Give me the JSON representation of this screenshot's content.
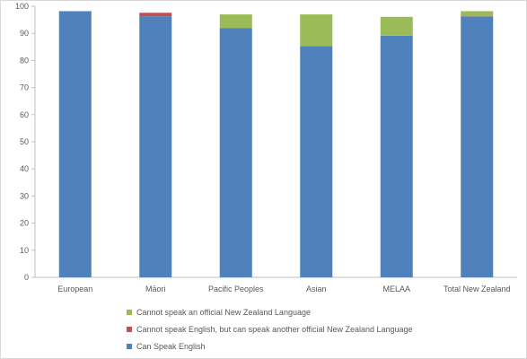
{
  "chart_data": {
    "type": "bar",
    "stacked": true,
    "categories": [
      "European",
      "Māori",
      "Pacific Peoples",
      "Asian",
      "MELAA",
      "Total New Zealand"
    ],
    "series": [
      {
        "name": "Can Speak English",
        "color": "#4f81bd",
        "values": [
          98.2,
          96.3,
          92.0,
          85.3,
          89.1,
          96.2
        ]
      },
      {
        "name": "Cannot speak English, but can speak another official New Zealand Language",
        "color": "#c0504d",
        "values": [
          0.0,
          1.3,
          0.0,
          0.0,
          0.0,
          0.1
        ]
      },
      {
        "name": "Cannot speak an official New Zealand Language",
        "color": "#9bbb59",
        "values": [
          0.0,
          0.0,
          5.0,
          11.7,
          7.0,
          1.9
        ]
      }
    ],
    "ylim": [
      0,
      100
    ],
    "yticks": [
      0,
      10,
      20,
      30,
      40,
      50,
      60,
      70,
      80,
      90,
      100
    ],
    "grid": false,
    "legend_position": "bottom",
    "legend_order": [
      2,
      1,
      0
    ]
  }
}
